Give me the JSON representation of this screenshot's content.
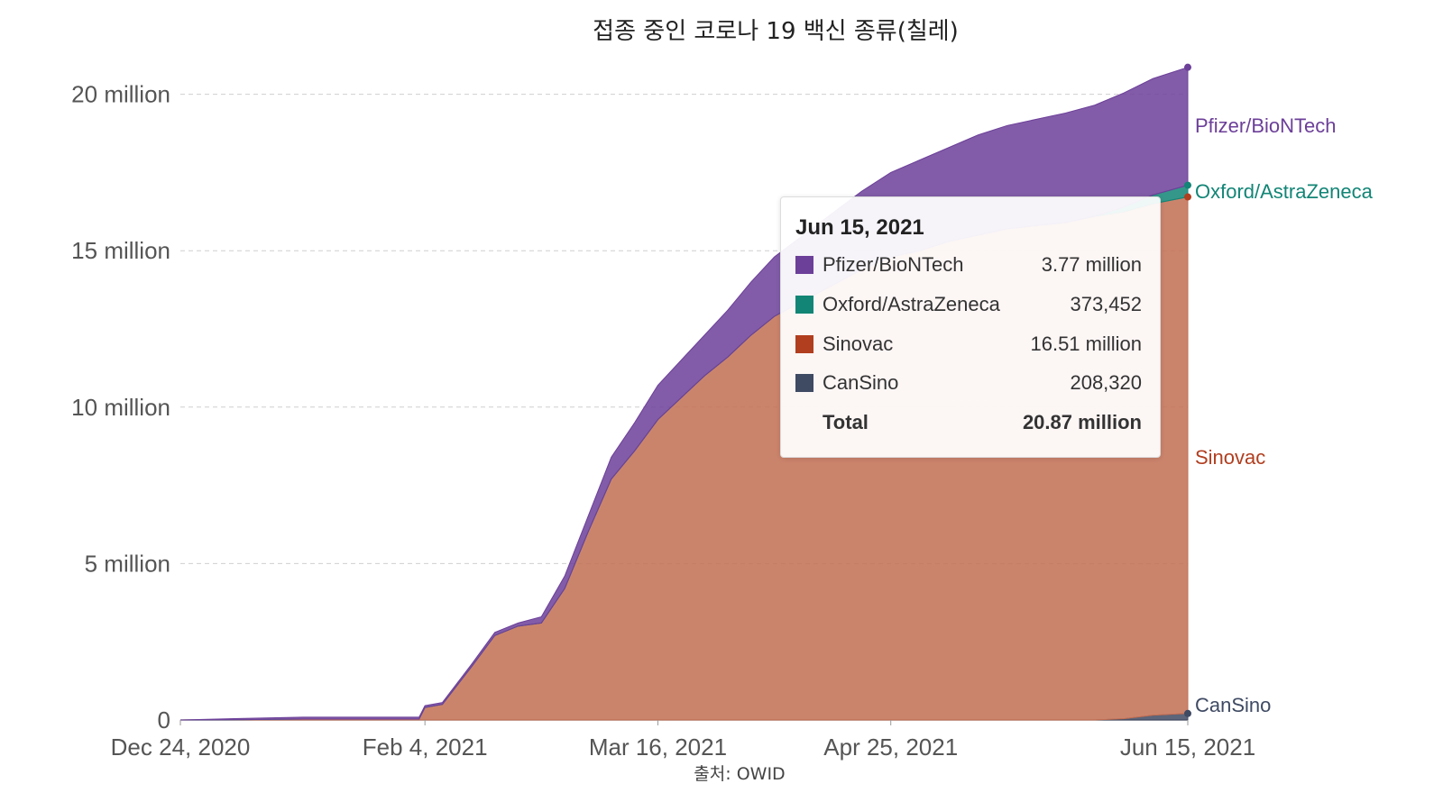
{
  "title": "접종 중인 코로나 19 백신 종류(칠레)",
  "source": "출처: OWID",
  "chart_data": {
    "type": "area",
    "stacked": true,
    "x_ticks": [
      "Dec 24, 2020",
      "Feb 4, 2021",
      "Mar 16, 2021",
      "Apr 25, 2021",
      "Jun 15, 2021"
    ],
    "y_ticks": [
      "0",
      "5 million",
      "10 million",
      "15 million",
      "20 million"
    ],
    "ylim": [
      0,
      21000000
    ],
    "grid": true,
    "x": [
      "2020-12-24",
      "2021-01-04",
      "2021-01-14",
      "2021-01-24",
      "2021-02-03",
      "2021-02-04",
      "2021-02-07",
      "2021-02-12",
      "2021-02-16",
      "2021-02-20",
      "2021-02-24",
      "2021-02-28",
      "2021-03-04",
      "2021-03-08",
      "2021-03-12",
      "2021-03-16",
      "2021-03-20",
      "2021-03-24",
      "2021-03-28",
      "2021-04-01",
      "2021-04-05",
      "2021-04-10",
      "2021-04-15",
      "2021-04-20",
      "2021-04-25",
      "2021-04-30",
      "2021-05-05",
      "2021-05-10",
      "2021-05-15",
      "2021-05-20",
      "2021-05-25",
      "2021-05-30",
      "2021-06-04",
      "2021-06-09",
      "2021-06-15"
    ],
    "series": [
      {
        "name": "CanSino",
        "color": "#3f4a63",
        "values": [
          0,
          0,
          0,
          0,
          0,
          0,
          0,
          0,
          0,
          0,
          0,
          0,
          0,
          0,
          0,
          0,
          0,
          0,
          0,
          0,
          0,
          0,
          0,
          0,
          0,
          0,
          0,
          0,
          0,
          0,
          0,
          0,
          40000,
          150000,
          208320
        ]
      },
      {
        "name": "Sinovac",
        "color": "#c26e52",
        "values": [
          0,
          10000,
          30000,
          30000,
          30000,
          400000,
          500000,
          1700000,
          2700000,
          3000000,
          3100000,
          4200000,
          6000000,
          7700000,
          8600000,
          9600000,
          10300000,
          11000000,
          11600000,
          12300000,
          12900000,
          13400000,
          13900000,
          14400000,
          14800000,
          15000000,
          15300000,
          15500000,
          15700000,
          15800000,
          15900000,
          16100000,
          16200000,
          16350000,
          16510000
        ]
      },
      {
        "name": "Oxford/AstraZeneca",
        "color": "#128576",
        "values": [
          0,
          0,
          0,
          0,
          0,
          0,
          0,
          0,
          0,
          0,
          0,
          0,
          0,
          0,
          0,
          0,
          0,
          0,
          0,
          0,
          0,
          0,
          0,
          0,
          0,
          0,
          0,
          0,
          0,
          0,
          0,
          0,
          150000,
          280000,
          373452
        ]
      },
      {
        "name": "Pfizer/BioNTech",
        "color": "#6c3f99",
        "values": [
          0,
          40000,
          60000,
          60000,
          60000,
          60000,
          60000,
          80000,
          100000,
          100000,
          200000,
          400000,
          500000,
          700000,
          900000,
          1100000,
          1200000,
          1300000,
          1500000,
          1700000,
          1900000,
          2100000,
          2300000,
          2500000,
          2700000,
          2900000,
          3000000,
          3200000,
          3300000,
          3400000,
          3500000,
          3550000,
          3650000,
          3720000,
          3770000
        ]
      }
    ],
    "series_labels": [
      {
        "name": "Pfizer/BioNTech",
        "color": "#6c3f99"
      },
      {
        "name": "Oxford/AstraZeneca",
        "color": "#128576"
      },
      {
        "name": "Sinovac",
        "color": "#b13e1f"
      },
      {
        "name": "CanSino",
        "color": "#3f4a63"
      }
    ],
    "tooltip": {
      "date": "Jun 15, 2021",
      "rows": [
        {
          "name": "Pfizer/BioNTech",
          "value": "3.77 million",
          "color": "#6c3f99"
        },
        {
          "name": "Oxford/AstraZeneca",
          "value": "373,452",
          "color": "#128576"
        },
        {
          "name": "Sinovac",
          "value": "16.51 million",
          "color": "#b13e1f"
        },
        {
          "name": "CanSino",
          "value": "208,320",
          "color": "#3f4a63"
        }
      ],
      "total_label": "Total",
      "total_value": "20.87 million"
    }
  }
}
